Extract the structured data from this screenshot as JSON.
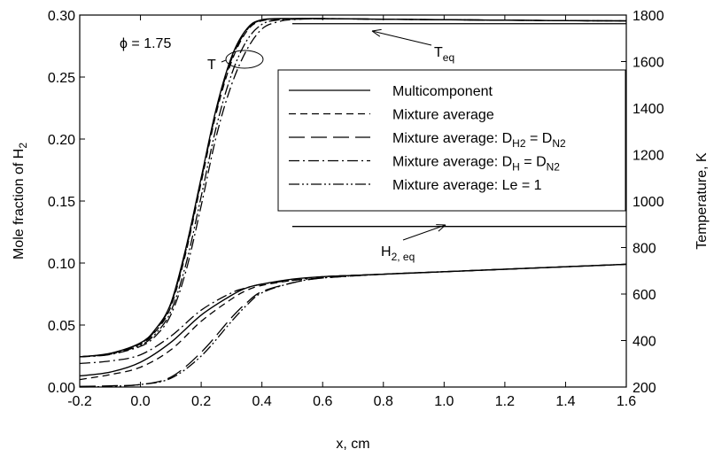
{
  "chart_data": {
    "type": "line",
    "annotation": "ϕ = 1.75",
    "xlabel": "x, cm",
    "ylabel_left": "Mole fraction of H",
    "ylabel_left_sub": "2",
    "ylabel_right": "Temperature, K",
    "xlim": [
      -0.2,
      1.6
    ],
    "ylim_left": [
      0.0,
      0.3
    ],
    "ylim_right": [
      200,
      1800
    ],
    "x_ticks": [
      "-0.2",
      "0.0",
      "0.2",
      "0.4",
      "0.6",
      "0.8",
      "1.0",
      "1.2",
      "1.4",
      "1.6"
    ],
    "y_left_ticks": [
      "0.00",
      "0.05",
      "0.10",
      "0.15",
      "0.20",
      "0.25",
      "0.30"
    ],
    "y_right_ticks": [
      "200",
      "400",
      "600",
      "800",
      "1000",
      "1200",
      "1400",
      "1600",
      "1800"
    ],
    "grid": false,
    "legend_position": "center-right",
    "legend": [
      {
        "label": "Multicomponent",
        "dash": "solid"
      },
      {
        "label": "Mixture average",
        "dash": "dash"
      },
      {
        "label": "Mixture average: D",
        "sub1": "H2",
        "mid": " = D",
        "sub2": "N2",
        "dash": "longdash"
      },
      {
        "label": "Mixture average: D",
        "sub1": "H",
        "mid": " = D",
        "sub2": "N2",
        "dash": "dashdot"
      },
      {
        "label": "Mixture average: Le = 1",
        "dash": "dashdotdot"
      }
    ],
    "labels": {
      "T": "T",
      "Teq": "T",
      "Teq_sub": "eq",
      "H2eq": "H",
      "H2eq_sub": "2, eq"
    },
    "reference_lines": {
      "T_eq": {
        "x": [
          0.5,
          1.6
        ],
        "y_right": 1763
      },
      "H2_eq": {
        "x": [
          0.5,
          1.6
        ],
        "y_left": 0.1295
      }
    },
    "series": [
      {
        "quantity": "Temperature",
        "axis": "right",
        "dash": "solid",
        "x": [
          -0.2,
          -0.1,
          0.0,
          0.05,
          0.1,
          0.15,
          0.2,
          0.25,
          0.3,
          0.35,
          0.4,
          0.5,
          0.6,
          0.8,
          1.0,
          1.2,
          1.4,
          1.6
        ],
        "y": [
          330,
          345,
          390,
          450,
          560,
          800,
          1100,
          1400,
          1620,
          1740,
          1780,
          1785,
          1785,
          1782,
          1780,
          1778,
          1776,
          1775
        ]
      },
      {
        "quantity": "Temperature",
        "axis": "right",
        "dash": "dash",
        "x": [
          -0.2,
          -0.1,
          0.0,
          0.05,
          0.1,
          0.15,
          0.2,
          0.25,
          0.3,
          0.35,
          0.4,
          0.5,
          0.6,
          0.8,
          1.0,
          1.2,
          1.4,
          1.6
        ],
        "y": [
          330,
          343,
          385,
          440,
          545,
          780,
          1080,
          1380,
          1600,
          1730,
          1775,
          1783,
          1784,
          1782,
          1780,
          1778,
          1776,
          1775
        ]
      },
      {
        "quantity": "Temperature",
        "axis": "right",
        "dash": "longdash",
        "x": [
          -0.2,
          -0.1,
          0.0,
          0.05,
          0.1,
          0.15,
          0.2,
          0.25,
          0.3,
          0.35,
          0.4,
          0.5,
          0.6,
          0.8,
          1.0,
          1.2,
          1.4,
          1.6
        ],
        "y": [
          330,
          344,
          388,
          445,
          555,
          790,
          1090,
          1390,
          1610,
          1735,
          1778,
          1784,
          1785,
          1782,
          1780,
          1778,
          1776,
          1775
        ]
      },
      {
        "quantity": "Temperature",
        "axis": "right",
        "dash": "dashdot",
        "x": [
          -0.2,
          -0.1,
          0.0,
          0.05,
          0.1,
          0.15,
          0.2,
          0.25,
          0.3,
          0.35,
          0.4,
          0.45,
          0.5,
          0.6,
          0.8,
          1.0,
          1.2,
          1.4,
          1.6
        ],
        "y": [
          330,
          340,
          375,
          420,
          510,
          700,
          980,
          1280,
          1500,
          1650,
          1740,
          1770,
          1780,
          1784,
          1782,
          1780,
          1778,
          1776,
          1775
        ]
      },
      {
        "quantity": "Temperature",
        "axis": "right",
        "dash": "dashdotdot",
        "x": [
          -0.2,
          -0.1,
          0.0,
          0.05,
          0.1,
          0.15,
          0.2,
          0.25,
          0.3,
          0.35,
          0.4,
          0.45,
          0.5,
          0.6,
          0.8,
          1.0,
          1.2,
          1.4,
          1.6
        ],
        "y": [
          330,
          341,
          380,
          430,
          525,
          730,
          1020,
          1320,
          1545,
          1690,
          1760,
          1778,
          1782,
          1784,
          1782,
          1780,
          1778,
          1776,
          1775
        ]
      },
      {
        "quantity": "H2 mole fraction",
        "axis": "left",
        "dash": "solid",
        "x": [
          -0.2,
          -0.1,
          0.0,
          0.1,
          0.2,
          0.3,
          0.35,
          0.4,
          0.5,
          0.6,
          0.8,
          1.0,
          1.2,
          1.4,
          1.6
        ],
        "y": [
          0.009,
          0.012,
          0.02,
          0.036,
          0.058,
          0.074,
          0.08,
          0.083,
          0.087,
          0.089,
          0.091,
          0.093,
          0.095,
          0.097,
          0.099
        ]
      },
      {
        "quantity": "H2 mole fraction",
        "axis": "left",
        "dash": "dash",
        "x": [
          -0.2,
          -0.1,
          0.0,
          0.1,
          0.2,
          0.3,
          0.35,
          0.4,
          0.5,
          0.6,
          0.8,
          1.0,
          1.2,
          1.4,
          1.6
        ],
        "y": [
          0.006,
          0.01,
          0.016,
          0.03,
          0.053,
          0.071,
          0.078,
          0.082,
          0.086,
          0.089,
          0.091,
          0.093,
          0.095,
          0.097,
          0.099
        ]
      },
      {
        "quantity": "H2 mole fraction",
        "axis": "left",
        "dash": "longdash",
        "x": [
          -0.2,
          -0.1,
          0.0,
          0.1,
          0.2,
          0.3,
          0.35,
          0.4,
          0.5,
          0.6,
          0.8,
          1.0,
          1.2,
          1.4,
          1.6
        ],
        "y": [
          0.0005,
          0.001,
          0.002,
          0.008,
          0.028,
          0.056,
          0.068,
          0.077,
          0.084,
          0.088,
          0.091,
          0.093,
          0.095,
          0.097,
          0.099
        ]
      },
      {
        "quantity": "H2 mole fraction",
        "axis": "left",
        "dash": "dashdot",
        "x": [
          -0.2,
          -0.1,
          0.0,
          0.1,
          0.2,
          0.3,
          0.35,
          0.4,
          0.5,
          0.6,
          0.8,
          1.0,
          1.2,
          1.4,
          1.6
        ],
        "y": [
          0.019,
          0.021,
          0.026,
          0.041,
          0.062,
          0.076,
          0.08,
          0.083,
          0.086,
          0.088,
          0.091,
          0.093,
          0.095,
          0.097,
          0.099
        ]
      },
      {
        "quantity": "H2 mole fraction",
        "axis": "left",
        "dash": "dashdotdot",
        "x": [
          -0.2,
          -0.1,
          0.0,
          0.1,
          0.2,
          0.3,
          0.35,
          0.4,
          0.5,
          0.6,
          0.8,
          1.0,
          1.2,
          1.4,
          1.6
        ],
        "y": [
          0.0,
          0.0005,
          0.002,
          0.007,
          0.025,
          0.053,
          0.066,
          0.076,
          0.084,
          0.088,
          0.091,
          0.093,
          0.095,
          0.097,
          0.099
        ]
      }
    ]
  }
}
